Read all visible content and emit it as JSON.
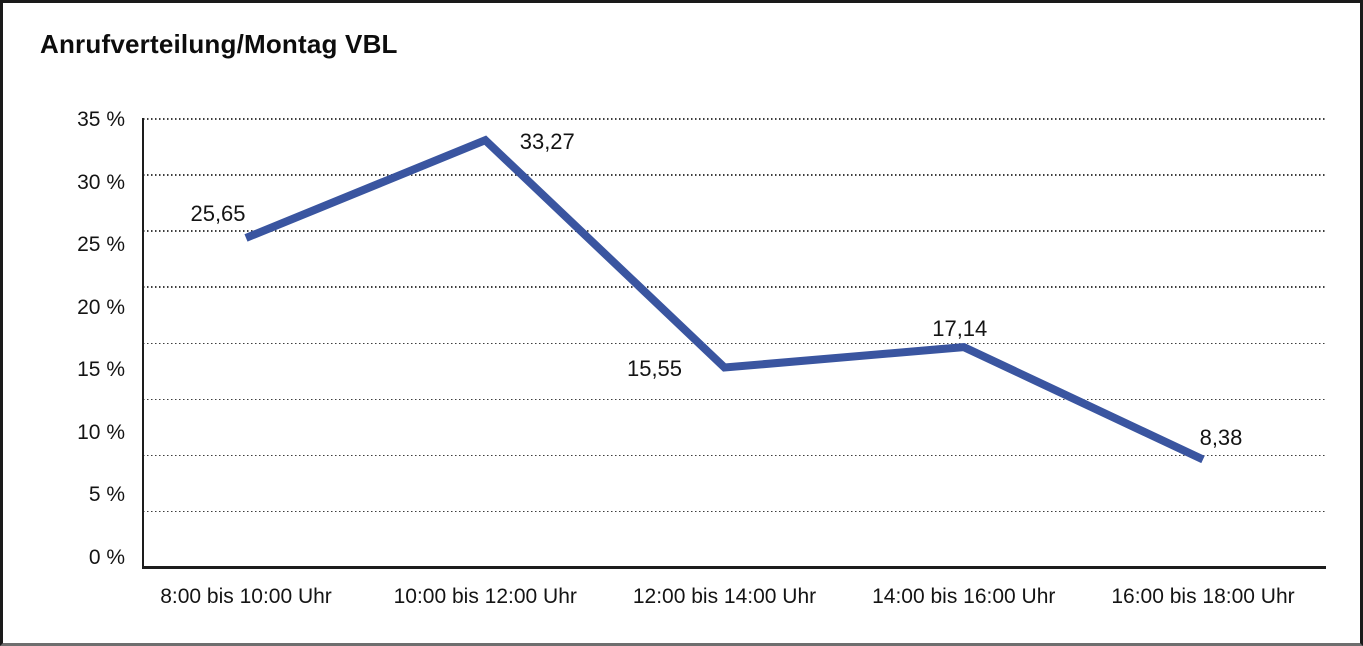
{
  "chart_data": {
    "type": "line",
    "title": "Anrufverteilung/Montag VBL",
    "categories": [
      "8:00 bis 10:00 Uhr",
      "10:00 bis 12:00 Uhr",
      "12:00 bis 14:00 Uhr",
      "14:00 bis 16:00 Uhr",
      "16:00 bis 18:00 Uhr"
    ],
    "values": [
      25.65,
      33.27,
      15.55,
      17.14,
      8.38
    ],
    "point_labels": [
      "25,65",
      "33,27",
      "15,55",
      "17,14",
      "8,38"
    ],
    "y_tick_labels": [
      "35 %",
      "30 %",
      "25 %",
      "20 %",
      "15 %",
      "10 %",
      "5 %",
      "0 %"
    ],
    "ylim": [
      0,
      35
    ],
    "y_tick_step_percent": 5,
    "xlabel": "",
    "ylabel": "",
    "legend": "none",
    "grid": {
      "horizontal": "dotted",
      "horizontal_divisions": 8,
      "vertical": "off"
    },
    "colors": {
      "line": "#3A55A0",
      "text": "#141414",
      "grid_dots": "#3d3d3d",
      "axis": "#1d1d1d",
      "background": "#ffffff",
      "frame_border": "#1a1a1a"
    }
  }
}
